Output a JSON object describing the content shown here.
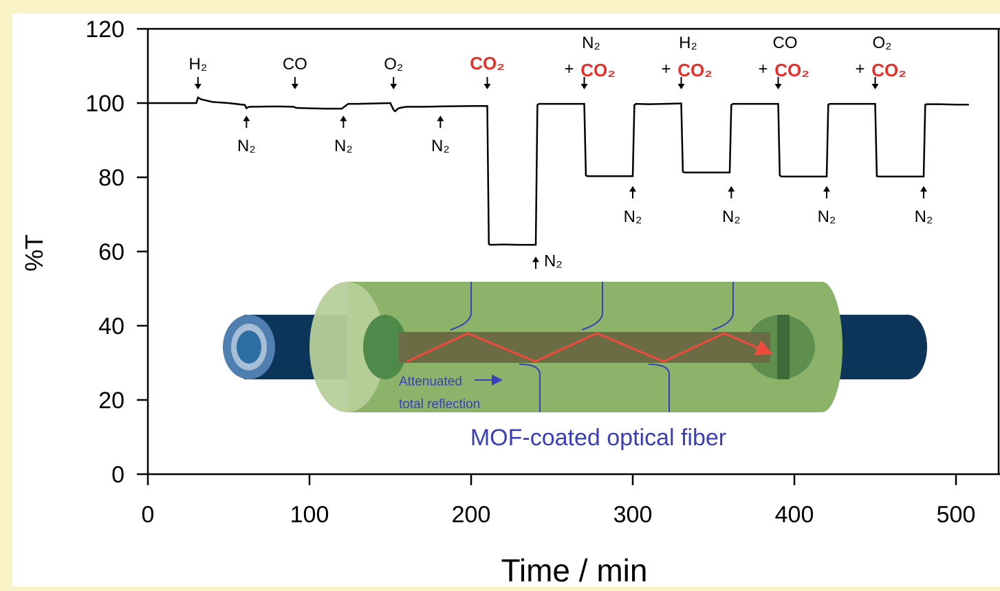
{
  "chart_data": {
    "type": "line",
    "title": "",
    "xlabel": "Time / min",
    "ylabel": "%T",
    "xlim": [
      0,
      520
    ],
    "ylim": [
      0,
      120
    ],
    "xticks": [
      "0",
      "100",
      "200",
      "300",
      "400",
      "500"
    ],
    "yticks": [
      "0",
      "20",
      "40",
      "60",
      "80",
      "100",
      "120"
    ],
    "grid": false,
    "series": [
      {
        "color": "#000000",
        "x": [
          0,
          30,
          31,
          33,
          40,
          50,
          60,
          61,
          62,
          63,
          80,
          90,
          92,
          100,
          110,
          120,
          123,
          124,
          130,
          150,
          152,
          153,
          155,
          157,
          160,
          170,
          180,
          200,
          210,
          211,
          212,
          220,
          230,
          240,
          241,
          242,
          250,
          260,
          270,
          271,
          272,
          280,
          290,
          300,
          301,
          302,
          310,
          320,
          330,
          331,
          332,
          340,
          350,
          360,
          361,
          362,
          370,
          380,
          390,
          391,
          392,
          400,
          410,
          420,
          421,
          422,
          430,
          440,
          450,
          451,
          452,
          460,
          470,
          480,
          481,
          482,
          490,
          500,
          508
        ],
        "y": [
          100,
          100,
          101.5,
          101,
          100.3,
          100,
          99.5,
          98.6,
          98.9,
          99,
          99.1,
          99,
          98.7,
          98.6,
          98.5,
          98.5,
          99.5,
          99.8,
          99.8,
          100,
          98.2,
          97.8,
          98.6,
          98.8,
          99,
          99,
          99.1,
          99.2,
          99.2,
          62,
          61.8,
          61.9,
          61.8,
          61.8,
          99.5,
          99.8,
          99.8,
          99.8,
          99.8,
          80.5,
          80.3,
          80.3,
          80.3,
          80.3,
          99.5,
          99.8,
          99.7,
          99.8,
          99.9,
          81.5,
          81.3,
          81.3,
          81.3,
          81.3,
          99.5,
          99.8,
          99.8,
          99.8,
          99.8,
          80.5,
          80.2,
          80.2,
          80.2,
          80.2,
          99.6,
          99.8,
          99.8,
          99.8,
          99.8,
          80.3,
          80.2,
          80.2,
          80.2,
          80.2,
          99.6,
          99.7,
          99.7,
          99.6,
          99.6
        ]
      }
    ],
    "annotations_above": [
      {
        "x": 31,
        "prefix": "",
        "line1": "",
        "gas": "H₂",
        "gas_red": false
      },
      {
        "x": 91,
        "prefix": "",
        "line1": "",
        "gas": "CO",
        "gas_red": false
      },
      {
        "x": 152,
        "prefix": "",
        "line1": "",
        "gas": "O₂",
        "gas_red": false
      },
      {
        "x": 210,
        "prefix": "",
        "line1": "",
        "gas": "CO₂",
        "gas_red": true
      },
      {
        "x": 270,
        "prefix": "+",
        "line1": "N₂",
        "gas": "CO₂",
        "gas_red": true
      },
      {
        "x": 330,
        "prefix": "+",
        "line1": "H₂",
        "gas": "CO₂",
        "gas_red": true
      },
      {
        "x": 390,
        "prefix": "+",
        "line1": "CO",
        "gas": "CO₂",
        "gas_red": true
      },
      {
        "x": 450,
        "prefix": "+",
        "line1": "O₂",
        "gas": "CO₂",
        "gas_red": true
      }
    ],
    "annotations_below": [
      {
        "x": 61,
        "y": 97,
        "label": "N₂"
      },
      {
        "x": 121,
        "y": 97,
        "label": "N₂"
      },
      {
        "x": 181,
        "y": 97,
        "label": "N₂"
      },
      {
        "x": 240,
        "y": 59,
        "label": "N₂"
      },
      {
        "x": 300,
        "y": 78,
        "label": "N₂"
      },
      {
        "x": 361,
        "y": 78,
        "label": "N₂"
      },
      {
        "x": 420,
        "y": 78,
        "label": "N₂"
      },
      {
        "x": 480,
        "y": 78,
        "label": "N₂"
      }
    ]
  },
  "inset": {
    "caption": "MOF-coated optical fiber",
    "note_line1": "Attenuated",
    "note_line2": "total reflection",
    "colors": {
      "core": "#2e6fa3",
      "cladding": "#0d3559",
      "coating": "#8db36a",
      "coating_light": "#b7cf9a",
      "core_inner": "#6b6c44",
      "ray": "#f04a3c",
      "wave": "#3a3fb8"
    }
  }
}
